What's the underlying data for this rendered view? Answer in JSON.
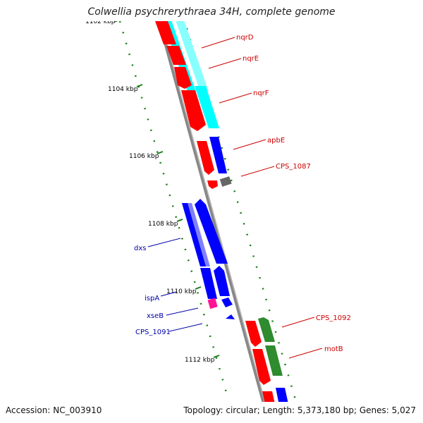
{
  "title": "Colwellia psychrerythraea 34H, complete genome",
  "footer": {
    "accession": "Accession: NC_003910",
    "summary": "Topology: circular; Length: 5,373,180 bp; Genes: 5,027"
  },
  "ticks": [
    "1102 kbp",
    "1104 kbp",
    "1106 kbp",
    "1108 kbp",
    "1110 kbp",
    "1112 kbp"
  ],
  "labels": {
    "right": [
      "nqrD",
      "nqrE",
      "nqrF",
      "apbE",
      "CPS_1087",
      "CPS_1092",
      "motB"
    ],
    "left": [
      "dxs",
      "ispA",
      "xseB",
      "CPS_1091"
    ]
  },
  "colors": {
    "red": "#ff0000",
    "cyan": "#00ffff",
    "blue": "#0000ff",
    "green": "#2e8b2e",
    "gray": "#666666",
    "magenta": "#ff1493",
    "light_blue": "#8080ff",
    "label_red": "#cc0000",
    "label_blue": "#0000aa",
    "tick_green": "#1a7f1a"
  }
}
